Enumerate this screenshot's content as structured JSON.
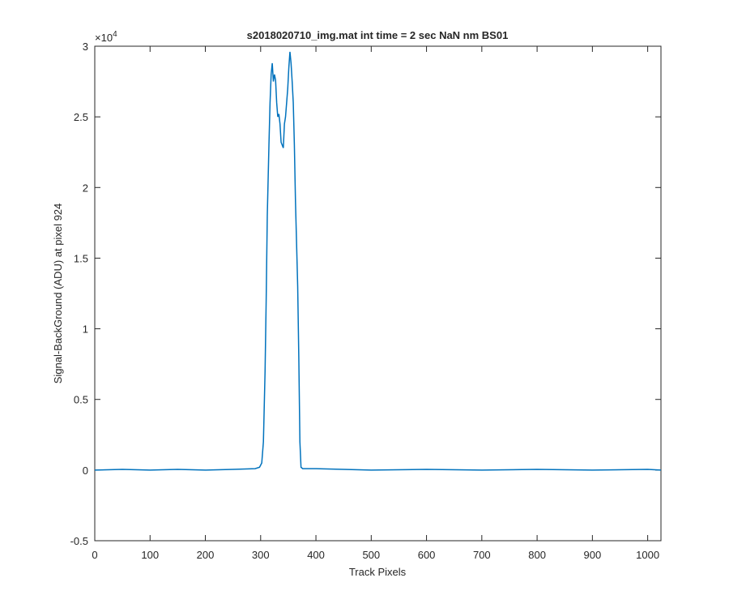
{
  "chart_data": {
    "type": "line",
    "title": "s2018020710_img.mat int time = 2 sec  NaN nm BS01",
    "x_label": "Track Pixels",
    "y_label": "Signal-BackGround (ADU) at pixel 924",
    "y_exponent": {
      "base": "×10",
      "exponent": "4"
    },
    "color": "#0072bd",
    "xlim": [
      0,
      1024
    ],
    "ylim": [
      -0.5,
      3
    ],
    "xticks": [
      0,
      100,
      200,
      300,
      400,
      500,
      600,
      700,
      800,
      900,
      1000
    ],
    "yticks": [
      -0.5,
      0,
      0.5,
      1,
      1.5,
      2,
      2.5,
      3
    ],
    "x": [
      0,
      50,
      100,
      150,
      200,
      250,
      290,
      298,
      302,
      305,
      308,
      310,
      312,
      315,
      317,
      319,
      321,
      323,
      325,
      327,
      329,
      331,
      333,
      335,
      337,
      339,
      341,
      343,
      345,
      347,
      349,
      351,
      353,
      355,
      357,
      359,
      361,
      363,
      365,
      367,
      369,
      371,
      373,
      376,
      400,
      450,
      500,
      600,
      700,
      800,
      900,
      1000,
      1024
    ],
    "values": [
      0.0,
      0.005,
      0.0,
      0.005,
      0.0,
      0.005,
      0.01,
      0.02,
      0.05,
      0.2,
      0.7,
      1.2,
      1.8,
      2.3,
      2.6,
      2.8,
      2.88,
      2.75,
      2.8,
      2.76,
      2.6,
      2.5,
      2.52,
      2.45,
      2.32,
      2.3,
      2.28,
      2.45,
      2.5,
      2.6,
      2.7,
      2.85,
      2.96,
      2.88,
      2.75,
      2.6,
      2.3,
      1.9,
      1.6,
      1.3,
      0.8,
      0.2,
      0.02,
      0.01,
      0.01,
      0.005,
      0.0,
      0.005,
      0.0,
      0.005,
      0.0,
      0.005,
      0.0
    ]
  }
}
